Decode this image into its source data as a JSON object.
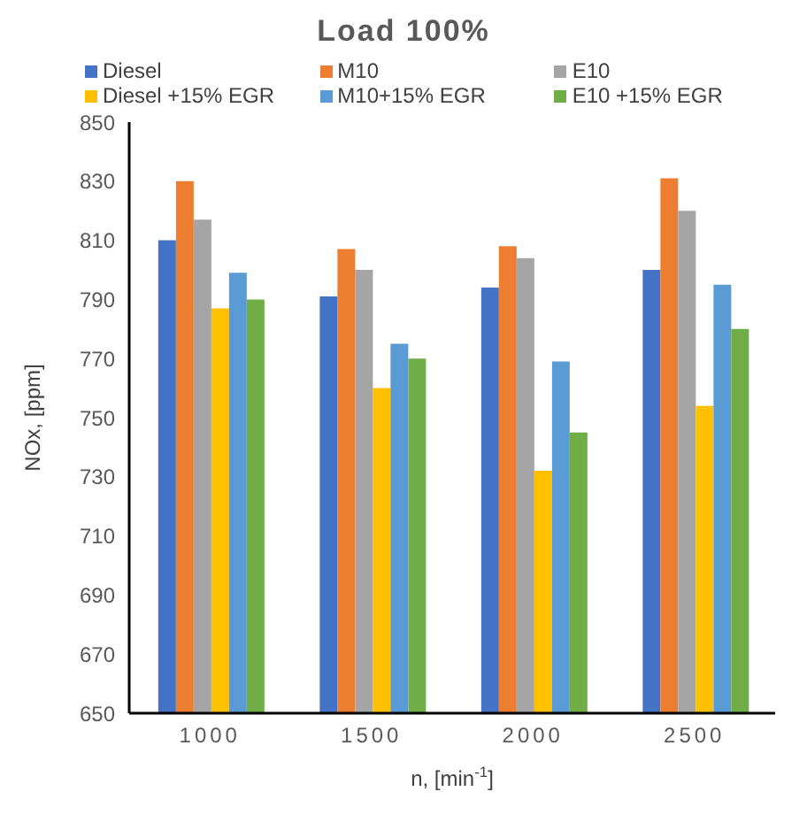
{
  "chart_data": {
    "type": "bar",
    "title": "Load 100%",
    "xlabel": "n, [min$^{-1}$]",
    "ylabel": "NOx, [ppm]",
    "categories": [
      "1000",
      "1500",
      "2000",
      "2500"
    ],
    "series": [
      {
        "name": "Diesel",
        "color": "#4472c4",
        "values": [
          810,
          791,
          794,
          800
        ]
      },
      {
        "name": "M10",
        "color": "#ed7d31",
        "values": [
          830,
          807,
          808,
          831
        ]
      },
      {
        "name": "E10",
        "color": "#a5a5a5",
        "values": [
          817,
          800,
          804,
          820
        ]
      },
      {
        "name": "Diesel +15% EGR",
        "color": "#ffc000",
        "values": [
          787,
          760,
          732,
          754
        ]
      },
      {
        "name": "M10+15% EGR",
        "color": "#5b9bd5",
        "values": [
          799,
          775,
          769,
          795
        ]
      },
      {
        "name": "E10 +15% EGR",
        "color": "#70ad47",
        "values": [
          790,
          770,
          745,
          780
        ]
      }
    ],
    "ylim": [
      650,
      850
    ],
    "yticks": [
      650,
      670,
      690,
      710,
      730,
      750,
      770,
      790,
      810,
      830,
      850
    ],
    "grid": false,
    "legend": "top"
  }
}
